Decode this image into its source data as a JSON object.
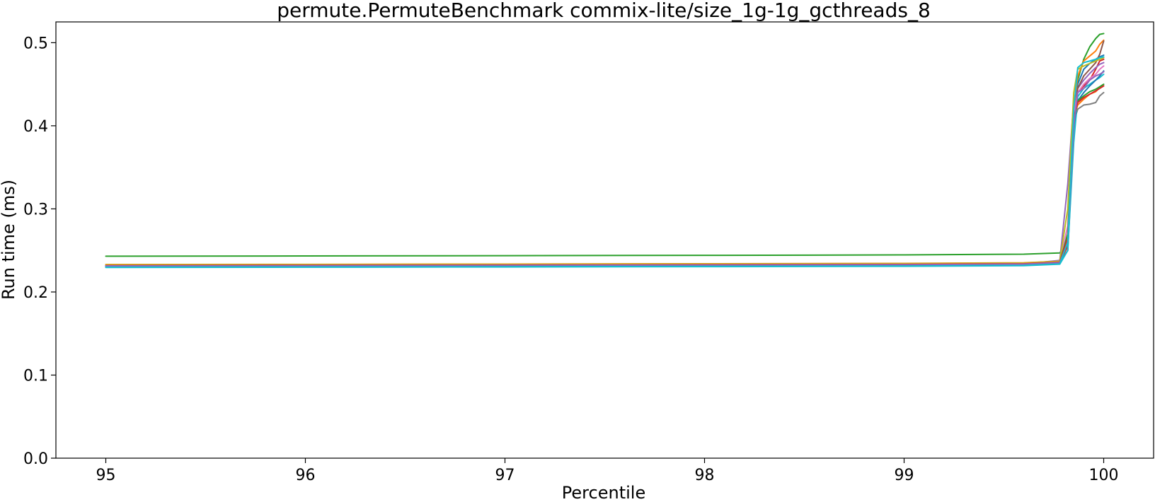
{
  "chart_data": {
    "type": "line",
    "title": "permute.PermuteBenchmark commix-lite/size_1g-1g_gcthreads_8",
    "xlabel": "Percentile",
    "ylabel": "Run time (ms)",
    "xlim": [
      94.75,
      100.25
    ],
    "ylim": [
      0.0,
      0.525
    ],
    "xticks": [
      95,
      96,
      97,
      98,
      99,
      100
    ],
    "yticks": [
      0.0,
      0.1,
      0.2,
      0.3,
      0.4,
      0.5
    ],
    "xtick_labels": [
      "95",
      "96",
      "97",
      "98",
      "99",
      "100"
    ],
    "ytick_labels": [
      "0.0",
      "0.1",
      "0.2",
      "0.3",
      "0.4",
      "0.5"
    ],
    "grid": false,
    "legend": "none",
    "x": [
      95.0,
      96.0,
      97.0,
      98.0,
      99.0,
      99.6,
      99.78,
      99.82,
      99.85,
      99.87,
      99.9,
      99.93,
      99.96,
      99.98,
      100.0
    ],
    "series": [
      {
        "color": "#2ca02c",
        "values": [
          0.243,
          0.2433,
          0.2437,
          0.2441,
          0.2446,
          0.2455,
          0.247,
          0.26,
          0.4,
          0.455,
          0.48,
          0.495,
          0.505,
          0.51,
          0.511
        ]
      },
      {
        "color": "#1f77b4",
        "values": [
          0.231,
          0.2312,
          0.2315,
          0.2318,
          0.2322,
          0.233,
          0.235,
          0.25,
          0.39,
          0.45,
          0.468,
          0.475,
          0.48,
          0.483,
          0.485
        ]
      },
      {
        "color": "#ff7f0e",
        "values": [
          0.233,
          0.2333,
          0.2336,
          0.234,
          0.2344,
          0.2352,
          0.237,
          0.27,
          0.42,
          0.46,
          0.478,
          0.484,
          0.49,
          0.498,
          0.503
        ]
      },
      {
        "color": "#d62728",
        "values": [
          0.232,
          0.2323,
          0.2326,
          0.233,
          0.2334,
          0.2342,
          0.236,
          0.255,
          0.4,
          0.44,
          0.448,
          0.455,
          0.468,
          0.478,
          0.48
        ]
      },
      {
        "color": "#9467bd",
        "values": [
          0.2315,
          0.2318,
          0.2321,
          0.2325,
          0.2329,
          0.2337,
          0.238,
          0.33,
          0.43,
          0.445,
          0.455,
          0.463,
          0.47,
          0.474,
          0.476
        ]
      },
      {
        "color": "#8c564b",
        "values": [
          0.2325,
          0.2328,
          0.2331,
          0.2335,
          0.2339,
          0.2347,
          0.236,
          0.26,
          0.41,
          0.445,
          0.46,
          0.468,
          0.476,
          0.486,
          0.502
        ]
      },
      {
        "color": "#e377c2",
        "values": [
          0.2318,
          0.2321,
          0.2324,
          0.2328,
          0.2332,
          0.234,
          0.236,
          0.28,
          0.415,
          0.44,
          0.45,
          0.457,
          0.462,
          0.468,
          0.472
        ]
      },
      {
        "color": "#7f7f7f",
        "values": [
          0.2322,
          0.2325,
          0.2328,
          0.2332,
          0.2336,
          0.2344,
          0.236,
          0.265,
          0.405,
          0.42,
          0.425,
          0.426,
          0.428,
          0.436,
          0.44
        ]
      },
      {
        "color": "#bcbd22",
        "values": [
          0.2328,
          0.2331,
          0.2334,
          0.2338,
          0.2342,
          0.235,
          0.237,
          0.3,
          0.44,
          0.468,
          0.472,
          0.475,
          0.478,
          0.48,
          0.482
        ]
      },
      {
        "color": "#17becf",
        "values": [
          0.2295,
          0.2298,
          0.2301,
          0.2305,
          0.2309,
          0.2317,
          0.2335,
          0.25,
          0.38,
          0.435,
          0.445,
          0.45,
          0.455,
          0.458,
          0.462
        ]
      },
      {
        "color": "#1f77b4",
        "values": [
          0.2305,
          0.2308,
          0.2311,
          0.2315,
          0.2319,
          0.2327,
          0.2345,
          0.26,
          0.4,
          0.43,
          0.44,
          0.448,
          0.455,
          0.46,
          0.466
        ]
      },
      {
        "color": "#ff7f0e",
        "values": [
          0.232,
          0.2323,
          0.2326,
          0.233,
          0.2334,
          0.2342,
          0.236,
          0.26,
          0.41,
          0.425,
          0.432,
          0.438,
          0.441,
          0.446,
          0.448
        ]
      },
      {
        "color": "#2ca02c",
        "values": [
          0.2312,
          0.2315,
          0.2318,
          0.2322,
          0.2326,
          0.2334,
          0.2352,
          0.27,
          0.405,
          0.43,
          0.436,
          0.441,
          0.444,
          0.447,
          0.45
        ]
      },
      {
        "color": "#d62728",
        "values": [
          0.2317,
          0.232,
          0.2323,
          0.2327,
          0.2331,
          0.2339,
          0.2357,
          0.265,
          0.41,
          0.428,
          0.434,
          0.438,
          0.442,
          0.445,
          0.448
        ]
      },
      {
        "color": "#9467bd",
        "values": [
          0.2314,
          0.2317,
          0.232,
          0.2324,
          0.2328,
          0.2336,
          0.2354,
          0.26,
          0.4,
          0.44,
          0.445,
          0.455,
          0.46,
          0.462,
          0.465
        ]
      },
      {
        "color": "#17becf",
        "values": [
          0.2298,
          0.2301,
          0.2304,
          0.2308,
          0.2312,
          0.232,
          0.2338,
          0.26,
          0.42,
          0.47,
          0.476,
          0.478,
          0.48,
          0.482,
          0.483
        ]
      }
    ]
  }
}
